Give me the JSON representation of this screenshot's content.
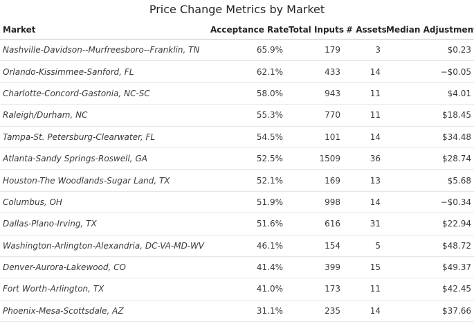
{
  "chart_data": {
    "type": "table",
    "title": "Price Change Metrics by Market",
    "columns": [
      "Market",
      "Acceptance Rate",
      "Total Inputs",
      "# Assets",
      "Median Adjustment"
    ],
    "rows": [
      [
        "Nashville-Davidson--Murfreesboro--Franklin, TN",
        "65.9%",
        "179",
        "3",
        "$0.23"
      ],
      [
        "Orlando-Kissimmee-Sanford, FL",
        "62.1%",
        "433",
        "14",
        "−$0.05"
      ],
      [
        "Charlotte-Concord-Gastonia, NC-SC",
        "58.0%",
        "943",
        "11",
        "$4.01"
      ],
      [
        "Raleigh/Durham, NC",
        "55.3%",
        "770",
        "11",
        "$18.45"
      ],
      [
        "Tampa-St. Petersburg-Clearwater, FL",
        "54.5%",
        "101",
        "14",
        "$34.48"
      ],
      [
        "Atlanta-Sandy Springs-Roswell, GA",
        "52.5%",
        "1509",
        "36",
        "$28.74"
      ],
      [
        "Houston-The Woodlands-Sugar Land, TX",
        "52.1%",
        "169",
        "13",
        "$5.68"
      ],
      [
        "Columbus, OH",
        "51.9%",
        "998",
        "14",
        "−$0.34"
      ],
      [
        "Dallas-Plano-Irving, TX",
        "51.6%",
        "616",
        "31",
        "$22.94"
      ],
      [
        "Washington-Arlington-Alexandria, DC-VA-MD-WV",
        "46.1%",
        "154",
        "5",
        "$48.72"
      ],
      [
        "Denver-Aurora-Lakewood, CO",
        "41.4%",
        "399",
        "15",
        "$49.37"
      ],
      [
        "Fort Worth-Arlington, TX",
        "41.0%",
        "173",
        "11",
        "$42.45"
      ],
      [
        "Phoenix-Mesa-Scottsdale, AZ",
        "31.1%",
        "235",
        "14",
        "$37.66"
      ]
    ]
  }
}
